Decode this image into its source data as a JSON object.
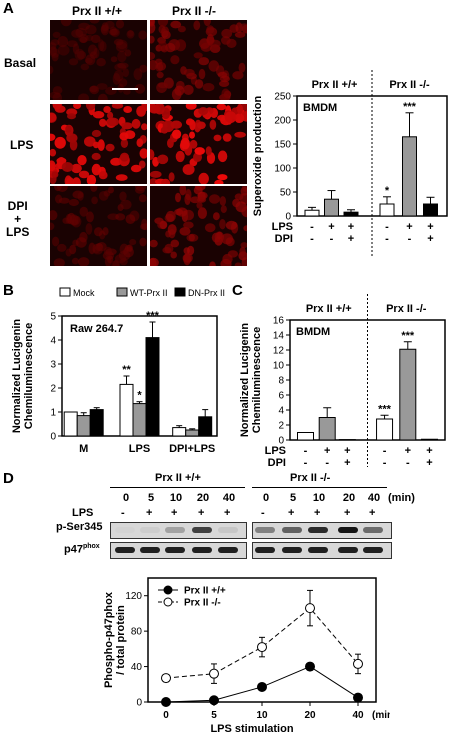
{
  "panelA": {
    "letter": "A",
    "col_labels": [
      "Prx II +/+",
      "Prx II -/-"
    ],
    "row_labels": [
      "Basal",
      "LPS",
      "DPI\n+\nLPS"
    ],
    "chart_group_labels": [
      "Prx II +/+",
      "Prx II  -/-"
    ],
    "cond_rows": [
      {
        "label": "LPS",
        "signs": [
          "-",
          "+",
          "+",
          "-",
          "+",
          "+"
        ]
      },
      {
        "label": "DPI",
        "signs": [
          "-",
          "-",
          "+",
          "-",
          "-",
          "+"
        ]
      }
    ]
  },
  "panelB": {
    "letter": "B",
    "cond_labels": [
      "M",
      "LPS",
      "DPI+LPS"
    ]
  },
  "panelC": {
    "letter": "C",
    "group_labels": [
      "Prx II +/+",
      "Prx II  -/-"
    ],
    "cond_rows": [
      {
        "label": "LPS",
        "signs": [
          "-",
          "+",
          "+",
          "-",
          "+",
          "+"
        ]
      },
      {
        "label": "DPI",
        "signs": [
          "-",
          "-",
          "+",
          "-",
          "-",
          "+"
        ]
      }
    ]
  },
  "panelD": {
    "letter": "D",
    "group_labels": [
      "Prx II +/+",
      "Prx II -/-"
    ],
    "times": [
      "0",
      "5",
      "10",
      "20",
      "40"
    ],
    "min_label": "(min)",
    "lps_label": "LPS",
    "lps_signs": [
      "-",
      "+",
      "+",
      "+",
      "+",
      "-",
      "+",
      "+",
      "+",
      "+"
    ],
    "band_labels": [
      "p-Ser345",
      "p47phox"
    ]
  },
  "chart_data": [
    {
      "id": "A",
      "type": "bar",
      "title": "BMDM",
      "ylabel": "Superoxide production",
      "ylim": [
        0,
        250
      ],
      "yticks": [
        0,
        50,
        100,
        150,
        200,
        250
      ],
      "values": [
        12,
        35,
        8,
        25,
        165,
        25
      ],
      "errors": [
        6,
        18,
        5,
        15,
        50,
        14
      ],
      "colors": [
        "#ffffff",
        "#999999",
        "#000000",
        "#ffffff",
        "#999999",
        "#000000"
      ],
      "annotations": [
        "",
        "",
        "",
        "*",
        "***",
        ""
      ]
    },
    {
      "id": "B",
      "type": "bar",
      "title": "Raw 264.7",
      "ylabel": "Normalized Lucigenin Chemiluminescence",
      "ylim": [
        0,
        5
      ],
      "yticks": [
        0,
        1,
        2,
        3,
        4,
        5
      ],
      "categories": [
        "M",
        "LPS",
        "DPI+LPS"
      ],
      "legend": [
        "Mock",
        "WT-Prx II",
        "DN-Prx II"
      ],
      "legend_position": "top",
      "series": [
        {
          "name": "Mock",
          "color": "#ffffff",
          "values": [
            1.0,
            2.15,
            0.35
          ],
          "errors": [
            0,
            0.35,
            0.08
          ],
          "annotations": [
            "",
            "**",
            ""
          ]
        },
        {
          "name": "WT-Prx II",
          "color": "#999999",
          "values": [
            0.85,
            1.35,
            0.25
          ],
          "errors": [
            0.12,
            0.08,
            0.05
          ],
          "annotations": [
            "",
            "*",
            ""
          ]
        },
        {
          "name": "DN-Prx II",
          "color": "#000000",
          "values": [
            1.1,
            4.1,
            0.8
          ],
          "errors": [
            0.08,
            0.65,
            0.3
          ],
          "annotations": [
            "",
            "***",
            ""
          ]
        }
      ]
    },
    {
      "id": "C",
      "type": "bar",
      "title": "BMDM",
      "ylabel": "Normalized Lucigenin Chemiluminescence",
      "ylim": [
        0,
        16
      ],
      "yticks": [
        0,
        2,
        4,
        6,
        8,
        10,
        12,
        14,
        16
      ],
      "values": [
        1.0,
        3.0,
        0.05,
        2.8,
        12.1,
        0.1
      ],
      "errors": [
        0,
        1.3,
        0,
        0.5,
        1.0,
        0
      ],
      "colors": [
        "#ffffff",
        "#999999",
        "#000000",
        "#ffffff",
        "#999999",
        "#000000"
      ],
      "annotations": [
        "",
        "",
        "",
        "***",
        "***",
        ""
      ]
    },
    {
      "id": "D",
      "type": "line",
      "xlabel": "LPS stimulation",
      "ylabel": "Phospho-p47phox / total protein",
      "categories": [
        "0",
        "5",
        "10",
        "20",
        "40"
      ],
      "x_unit": "(min)",
      "ylim": [
        0,
        140
      ],
      "yticks": [
        0,
        40,
        80,
        120
      ],
      "legend_position": "top-left",
      "series": [
        {
          "name": "Prx II +/+",
          "values": [
            0,
            2,
            17,
            40,
            5
          ],
          "errors": [
            2,
            2,
            3,
            4,
            2
          ],
          "marker": "filled"
        },
        {
          "name": "Prx II -/-",
          "values": [
            27,
            32,
            62,
            106,
            43
          ],
          "errors": [
            4,
            11,
            11,
            20,
            11
          ],
          "marker": "open"
        }
      ]
    }
  ]
}
